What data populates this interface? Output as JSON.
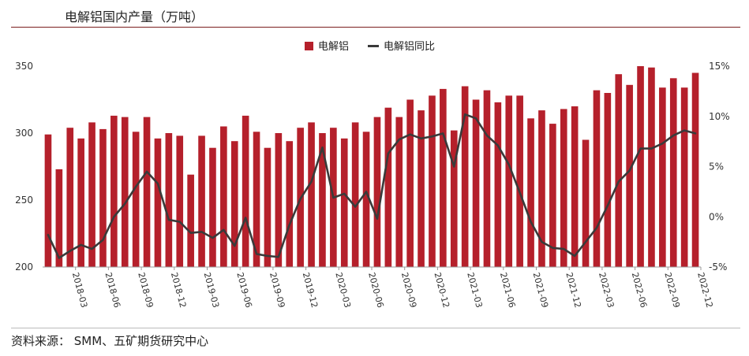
{
  "header": {
    "title": "电解铝国内产量（万吨）"
  },
  "footer": {
    "source": "资料来源：  SMM、五矿期货研究中心"
  },
  "chart_data": {
    "type": "bar",
    "title": "电解铝国内产量（万吨）",
    "legend": {
      "placement": "top-center",
      "items": [
        "电解铝",
        "电解铝同比"
      ]
    },
    "colors": {
      "bar": "#b5202b",
      "line": "#3a3a3a"
    },
    "grid": false,
    "x_tick_labels": [
      "2018-03",
      "2018-06",
      "2018-09",
      "2018-12",
      "2019-03",
      "2019-06",
      "2019-09",
      "2019-12",
      "2020-03",
      "2020-06",
      "2020-09",
      "2020-12",
      "2021-03",
      "2021-06",
      "2021-09",
      "2021-12",
      "2022-03",
      "2022-06",
      "2022-09",
      "2022-12"
    ],
    "categories": [
      "2018-01",
      "2018-02",
      "2018-03",
      "2018-04",
      "2018-05",
      "2018-06",
      "2018-07",
      "2018-08",
      "2018-09",
      "2018-10",
      "2018-11",
      "2018-12",
      "2019-01",
      "2019-02",
      "2019-03",
      "2019-04",
      "2019-05",
      "2019-06",
      "2019-07",
      "2019-08",
      "2019-09",
      "2019-10",
      "2019-11",
      "2019-12",
      "2020-01",
      "2020-02",
      "2020-03",
      "2020-04",
      "2020-05",
      "2020-06",
      "2020-07",
      "2020-08",
      "2020-09",
      "2020-10",
      "2020-11",
      "2020-12",
      "2021-01",
      "2021-02",
      "2021-03",
      "2021-04",
      "2021-05",
      "2021-06",
      "2021-07",
      "2021-08",
      "2021-09",
      "2021-10",
      "2021-11",
      "2021-12",
      "2022-01",
      "2022-02",
      "2022-03",
      "2022-04",
      "2022-05",
      "2022-06",
      "2022-07",
      "2022-08",
      "2022-09",
      "2022-10",
      "2022-11",
      "2022-12"
    ],
    "y_left": {
      "lim": [
        200,
        350
      ],
      "ticks": [
        200,
        250,
        300,
        350
      ]
    },
    "y_right": {
      "lim": [
        -5,
        15
      ],
      "ticks": [
        "-5%",
        "0%",
        "5%",
        "10%",
        "15%"
      ],
      "tick_values": [
        -5,
        0,
        5,
        10,
        15
      ]
    },
    "series": [
      {
        "name": "电解铝",
        "type": "bar",
        "axis": "left",
        "values": [
          299,
          273,
          304,
          296,
          308,
          303,
          313,
          312,
          301,
          312,
          296,
          300,
          298,
          269,
          298,
          289,
          305,
          294,
          313,
          301,
          289,
          300,
          294,
          304,
          308,
          300,
          304,
          296,
          308,
          301,
          312,
          319,
          312,
          325,
          317,
          328,
          333,
          302,
          335,
          325,
          332,
          323,
          328,
          328,
          311,
          317,
          307,
          318,
          320,
          295,
          332,
          330,
          344,
          336,
          350,
          349,
          334,
          341,
          334,
          345
        ]
      },
      {
        "name": "电解铝同比",
        "type": "line",
        "axis": "right",
        "values": [
          -1.8,
          -4.1,
          -3.4,
          -2.8,
          -3.2,
          -2.3,
          0,
          1.3,
          3.0,
          4.5,
          3.3,
          -0.3,
          -0.5,
          -1.6,
          -1.5,
          -2.1,
          -1.3,
          -2.9,
          -0.1,
          -3.7,
          -3.9,
          -4.0,
          -0.8,
          1.8,
          3.5,
          6.9,
          1.9,
          2.3,
          1.0,
          2.5,
          -0.2,
          6.3,
          7.7,
          8.2,
          7.8,
          8.0,
          8.3,
          5.0,
          10.2,
          9.8,
          8.1,
          7.1,
          5.2,
          2.4,
          -0.5,
          -2.5,
          -3.1,
          -3.2,
          -3.9,
          -2.5,
          -1.1,
          1.1,
          3.5,
          4.6,
          6.8,
          6.8,
          7.3,
          8.1,
          8.6,
          8.3
        ]
      }
    ]
  }
}
